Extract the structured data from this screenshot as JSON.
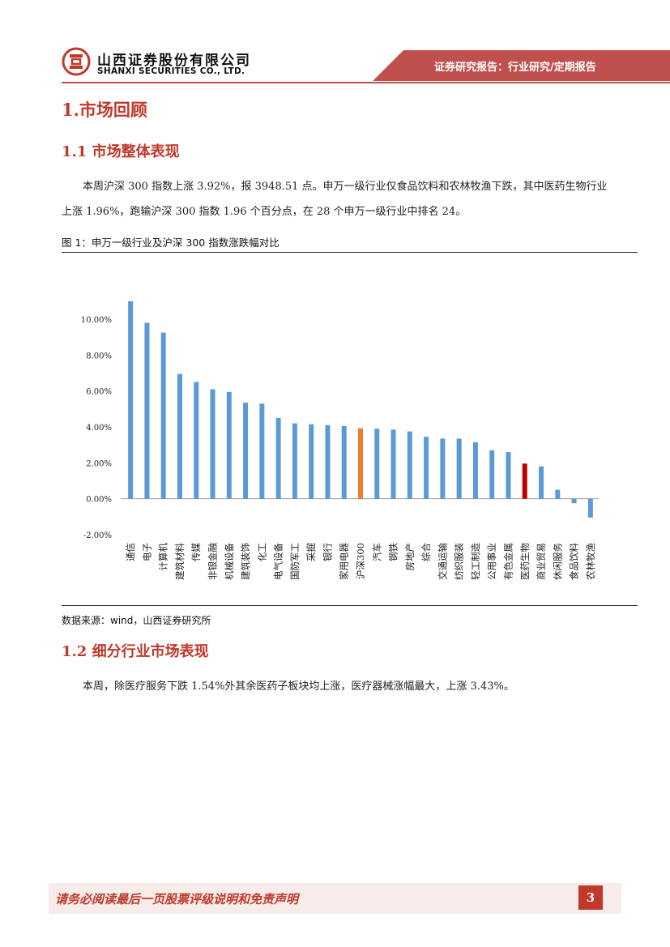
{
  "header": {
    "company_cn": "山西证券股份有限公司",
    "company_en": "SHANXI SECURITIES CO., LTD.",
    "report_type": "证券研究报告：行业研究/定期报告",
    "accent_color": "#c0504d"
  },
  "section1": {
    "title": "1.市场回顾"
  },
  "section1_1": {
    "title": "1.1 市场整体表现",
    "paragraph": "本周沪深 300 指数上涨 3.92%，报 3948.51 点。申万一级行业仅食品饮料和农林牧渔下跌，其中医药生物行业上涨 1.96%，跑输沪深 300 指数 1.96 个百分点，在 28 个申万一级行业中排名 24。"
  },
  "figure1": {
    "caption": "图 1：申万一级行业及沪深 300 指数涨跌幅对比",
    "source": "数据来源：wind，山西证券研究所"
  },
  "chart_data": {
    "type": "bar",
    "categories": [
      "通信",
      "电子",
      "计算机",
      "建筑材料",
      "传媒",
      "非银金融",
      "机械设备",
      "建筑装饰",
      "化工",
      "电气设备",
      "国防军工",
      "采掘",
      "银行",
      "家用电器",
      "沪深300",
      "汽车",
      "钢铁",
      "房地产",
      "综合",
      "交通运输",
      "纺织服装",
      "轻工制造",
      "公用事业",
      "有色金属",
      "医药生物",
      "商业贸易",
      "休闲服务",
      "食品饮料",
      "农林牧渔"
    ],
    "values": [
      11.0,
      9.8,
      9.25,
      6.95,
      6.5,
      6.1,
      5.95,
      5.35,
      5.3,
      4.5,
      4.2,
      4.15,
      4.1,
      4.05,
      3.92,
      3.9,
      3.85,
      3.75,
      3.45,
      3.35,
      3.35,
      3.15,
      2.7,
      2.6,
      1.96,
      1.8,
      0.5,
      -0.25,
      -1.05
    ],
    "ylim": [
      -2,
      11
    ],
    "yticks": [
      "10.00%",
      "8.00%",
      "6.00%",
      "4.00%",
      "2.00%",
      "0.00%",
      "-2.00%"
    ],
    "colors": {
      "default": "#5b9bd5",
      "highlight_index": "#ed7d31",
      "highlight_sector": "#c00000"
    },
    "highlight": {
      "沪深300": "#ed7d31",
      "医药生物": "#c00000"
    }
  },
  "section1_2": {
    "title": "1.2 细分行业市场表现",
    "paragraph": "本周，除医疗服务下跌 1.54%外其余医药子板块均上涨，医疗器械涨幅最大，上涨 3.43%。"
  },
  "footer": {
    "disclaimer": "请务必阅读最后一页股票评级说明和免责声明",
    "page_number": "3"
  }
}
